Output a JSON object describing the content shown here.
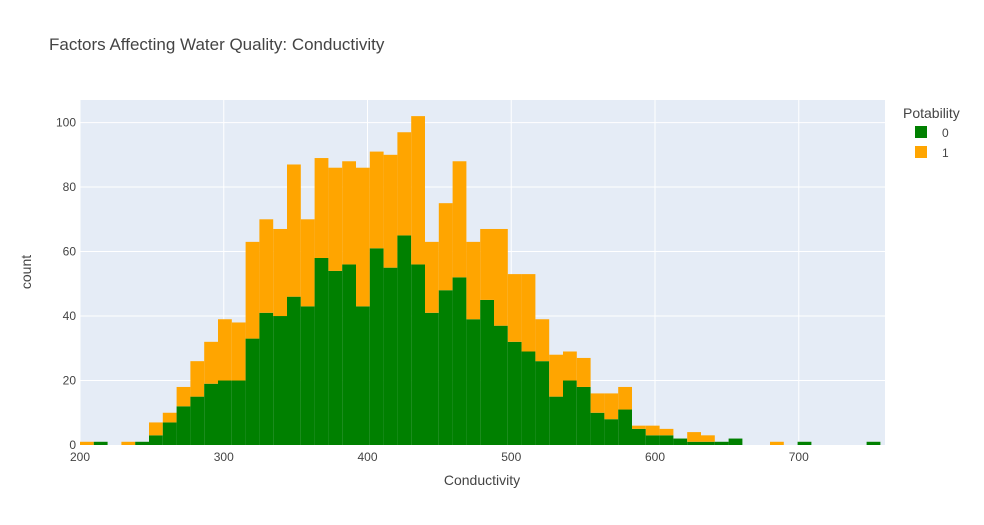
{
  "chart_data": {
    "type": "bar",
    "title": "Factors Affecting Water Quality: Conductivity",
    "xlabel": "Conductivity",
    "ylabel": "count",
    "xlim": [
      200,
      760
    ],
    "ylim": [
      0,
      107
    ],
    "bin_width": 9.6,
    "xticks": [
      200,
      300,
      400,
      500,
      600,
      700
    ],
    "yticks": [
      0,
      20,
      40,
      60,
      80,
      100
    ],
    "stacked": true,
    "grid": true,
    "legend": {
      "title": "Potability",
      "placement": "top-right"
    },
    "bin_start": [
      200.0,
      209.6,
      219.2,
      228.8,
      238.4,
      248.0,
      257.6,
      267.2,
      276.8,
      286.4,
      296.0,
      305.6,
      315.2,
      324.8,
      334.4,
      344.0,
      353.6,
      363.2,
      372.8,
      382.4,
      392.0,
      401.6,
      411.2,
      420.8,
      430.4,
      440.0,
      449.6,
      459.2,
      468.8,
      478.4,
      488.0,
      497.6,
      507.2,
      516.8,
      526.4,
      536.0,
      545.6,
      555.2,
      564.8,
      574.4,
      584.0,
      593.6,
      603.2,
      612.8,
      622.4,
      632.0,
      641.6,
      651.2,
      660.8,
      670.4,
      680.0,
      689.6,
      699.2,
      708.8,
      718.4,
      728.0,
      737.6,
      747.2,
      756.8
    ],
    "series": [
      {
        "name": "0",
        "color": "#008000",
        "values": [
          0,
          1,
          0,
          0,
          1,
          3,
          7,
          12,
          15,
          19,
          20,
          20,
          33,
          41,
          40,
          46,
          43,
          58,
          54,
          56,
          43,
          61,
          55,
          65,
          56,
          41,
          48,
          52,
          39,
          45,
          37,
          32,
          29,
          26,
          15,
          20,
          18,
          10,
          8,
          11,
          5,
          3,
          3,
          2,
          1,
          1,
          1,
          2,
          0,
          0,
          0,
          0,
          1,
          0,
          0,
          0,
          0,
          1,
          0
        ]
      },
      {
        "name": "1",
        "color": "#FFA500",
        "values": [
          1,
          0,
          0,
          1,
          0,
          4,
          3,
          6,
          11,
          13,
          19,
          18,
          30,
          29,
          27,
          41,
          27,
          31,
          32,
          32,
          43,
          30,
          35,
          32,
          46,
          22,
          27,
          36,
          24,
          22,
          30,
          21,
          24,
          13,
          13,
          9,
          9,
          6,
          8,
          7,
          1,
          3,
          2,
          0,
          3,
          2,
          0,
          0,
          0,
          0,
          1,
          0,
          0,
          0,
          0,
          0,
          0,
          0,
          0
        ]
      }
    ]
  }
}
